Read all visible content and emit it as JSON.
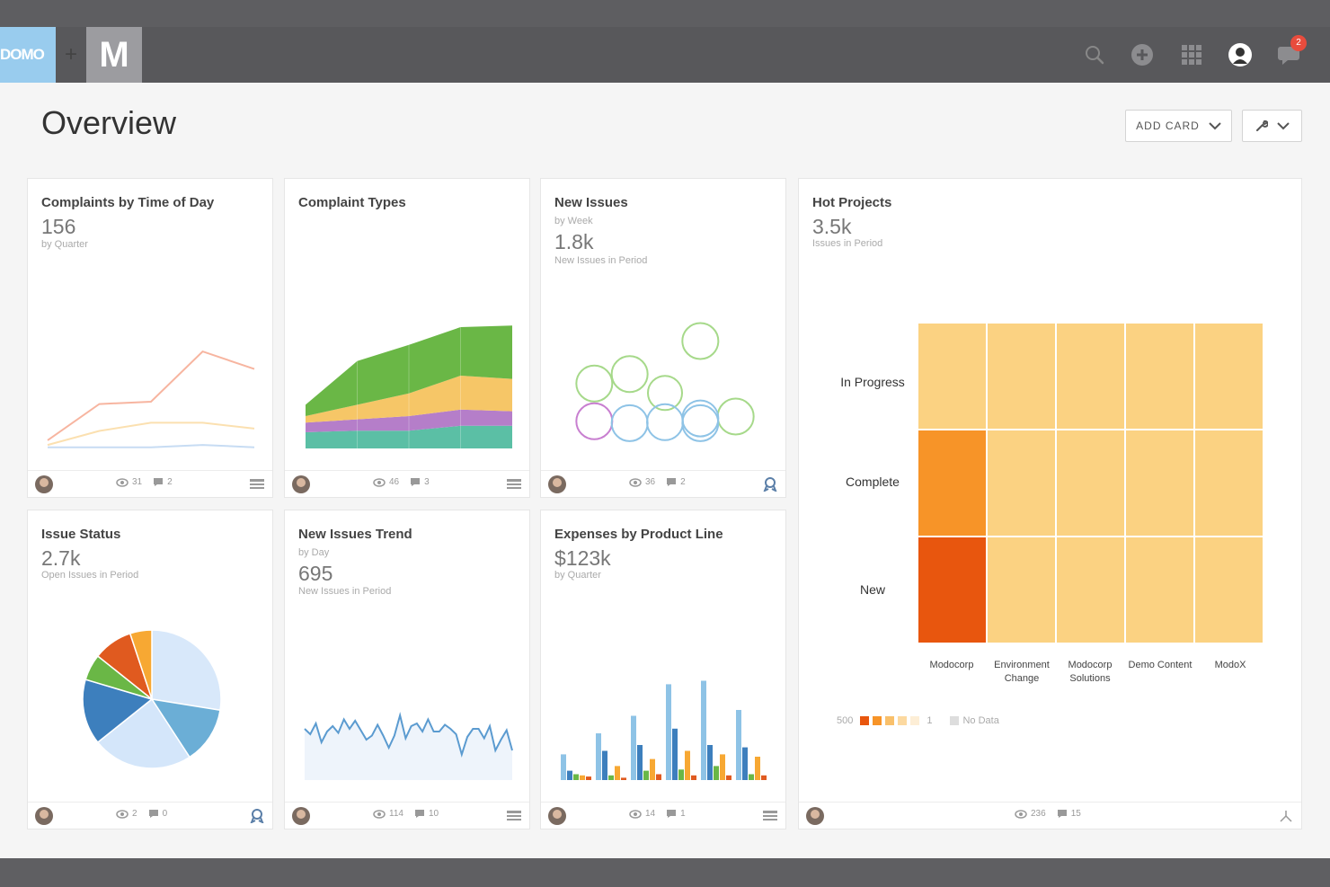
{
  "nav": {
    "brand_domo": "DOMO",
    "brand_plus": "+",
    "brand_m": "M",
    "notif_count": "2",
    "icons": [
      "search-icon",
      "add-icon",
      "apps-grid-icon",
      "profile-icon",
      "chat-icon"
    ]
  },
  "page": {
    "title": "Overview",
    "add_card_label": "ADD CARD"
  },
  "cards": [
    {
      "title": "Complaints by Time of Day",
      "value": "156",
      "sub1": "by Quarter",
      "views": "31",
      "comments": "2"
    },
    {
      "title": "Complaint Types",
      "views": "46",
      "comments": "3"
    },
    {
      "title": "New Issues",
      "sub1": "by Week",
      "value": "1.8k",
      "sub2": "New Issues in Period",
      "views": "36",
      "comments": "2"
    },
    {
      "title": "Hot Projects",
      "value": "3.5k",
      "sub1": "Issues in Period",
      "views": "236",
      "comments": "15"
    },
    {
      "title": "Issue Status",
      "value": "2.7k",
      "sub1": "Open Issues in Period",
      "views": "2",
      "comments": "0"
    },
    {
      "title": "New Issues Trend",
      "sub1": "by Day",
      "value": "695",
      "sub2": "New Issues in Period",
      "views": "114",
      "comments": "10"
    },
    {
      "title": "Expenses by Product Line",
      "value": "$123k",
      "sub1": "by Quarter",
      "views": "14",
      "comments": "1"
    }
  ],
  "heatmap": {
    "rows": [
      "In Progress",
      "Complete",
      "New"
    ],
    "cols": [
      "Modocorp",
      "Environment Change",
      "Modocorp Solutions",
      "Demo Content",
      "ModoX"
    ],
    "cells": [
      [
        1,
        1,
        1,
        1,
        1
      ],
      [
        3,
        1,
        1,
        1,
        1
      ],
      [
        4,
        1,
        1,
        1,
        1
      ]
    ],
    "colors": [
      "#f5f5f5",
      "#fbd282",
      "#f9c06b",
      "#f79428",
      "#e8560e"
    ],
    "legend": {
      "max": "500",
      "min": "1",
      "nodata": "No Data"
    }
  },
  "chart_data": [
    {
      "type": "line",
      "x": [
        1,
        2,
        3,
        4,
        5
      ],
      "series": [
        {
          "values": [
            7,
            38,
            40,
            83,
            68
          ],
          "color": "#f7b5a0"
        },
        {
          "values": [
            3,
            15,
            22,
            22,
            17
          ],
          "color": "#fbe0b0"
        },
        {
          "values": [
            1,
            1,
            1,
            3,
            1
          ],
          "color": "#c7dcf3"
        }
      ],
      "ylim": [
        0,
        100
      ]
    },
    {
      "type": "area",
      "x": [
        1,
        2,
        3,
        4,
        5
      ],
      "series": [
        {
          "values": [
            10,
            11,
            11,
            14,
            14
          ],
          "color": "#5bbfa5"
        },
        {
          "values": [
            6,
            7,
            9,
            10,
            9
          ],
          "color": "#b57ec9"
        },
        {
          "values": [
            4,
            9,
            14,
            21,
            20
          ],
          "color": "#f6c667"
        },
        {
          "values": [
            7,
            27,
            30,
            30,
            33
          ],
          "color": "#6ab746"
        }
      ],
      "ylim": [
        0,
        100
      ]
    },
    {
      "type": "scatter",
      "points": [
        {
          "x": 1,
          "y": 45,
          "r": 20,
          "color": "#a6d98a"
        },
        {
          "x": 2,
          "y": 55,
          "r": 20,
          "color": "#a6d98a"
        },
        {
          "x": 3,
          "y": 35,
          "r": 19,
          "color": "#a6d98a"
        },
        {
          "x": 4,
          "y": 90,
          "r": 20,
          "color": "#a6d98a"
        },
        {
          "x": 5,
          "y": 10,
          "r": 20,
          "color": "#a6d98a"
        },
        {
          "x": 1,
          "y": 5,
          "r": 20,
          "color": "#c87fd0"
        },
        {
          "x": 2,
          "y": 3,
          "r": 20,
          "color": "#8ec3e6"
        },
        {
          "x": 3,
          "y": 4,
          "r": 20,
          "color": "#8ec3e6"
        },
        {
          "x": 4,
          "y": 8,
          "r": 20,
          "color": "#8ec3e6"
        },
        {
          "x": 4,
          "y": 3,
          "r": 20,
          "color": "#8ec3e6"
        }
      ],
      "xlim": [
        0,
        6
      ],
      "ylim": [
        0,
        100
      ]
    },
    {
      "type": "pie",
      "slices": [
        {
          "value": 27,
          "color": "#d8e8fa"
        },
        {
          "value": 13,
          "color": "#6baed6"
        },
        {
          "value": 23,
          "color": "#d4e6fa"
        },
        {
          "value": 15,
          "color": "#3d7fbd"
        },
        {
          "value": 6,
          "color": "#6ab746"
        },
        {
          "value": 9,
          "color": "#e05a1f"
        },
        {
          "value": 5,
          "color": "#f7a833"
        }
      ]
    },
    {
      "type": "line",
      "values": [
        38,
        34,
        42,
        28,
        36,
        40,
        35,
        45,
        38,
        44,
        37,
        30,
        33,
        41,
        33,
        24,
        33,
        48,
        31,
        40,
        42,
        36,
        45,
        36,
        36,
        41,
        38,
        34,
        19,
        32,
        38,
        38,
        31,
        40,
        22,
        30,
        37,
        22
      ],
      "ylim": [
        0,
        100
      ],
      "color": "#5b9bd0"
    },
    {
      "type": "bar",
      "groups": 6,
      "series": [
        {
          "values": [
            22,
            40,
            55,
            82,
            85,
            60
          ],
          "color": "#8ec3e6"
        },
        {
          "values": [
            8,
            25,
            30,
            44,
            30,
            28
          ],
          "color": "#3d7fbd"
        },
        {
          "values": [
            5,
            4,
            8,
            9,
            12,
            5
          ],
          "color": "#6ab746"
        },
        {
          "values": [
            4,
            12,
            18,
            25,
            22,
            20
          ],
          "color": "#f7a833"
        },
        {
          "values": [
            3,
            2,
            5,
            4,
            4,
            4
          ],
          "color": "#e05a1f"
        }
      ],
      "ylim": [
        0,
        100
      ]
    }
  ]
}
